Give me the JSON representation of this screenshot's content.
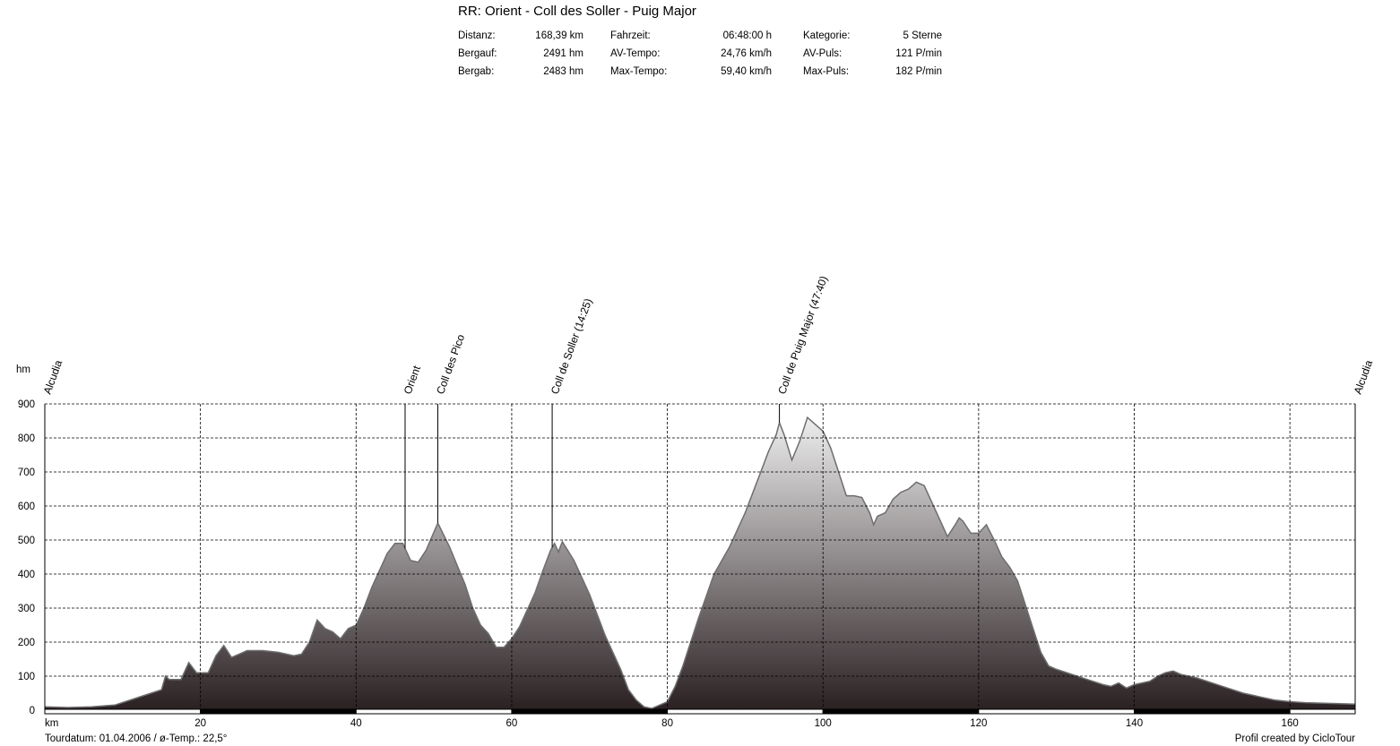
{
  "title": "RR: Orient - Coll des Soller - Puig Major",
  "stats": [
    [
      {
        "label": "Distanz:",
        "value": "168,39 km"
      },
      {
        "label": "Fahrzeit:",
        "value": "06:48:00 h"
      },
      {
        "label": "Kategorie:",
        "value": "5 Sterne"
      }
    ],
    [
      {
        "label": "Bergauf:",
        "value": "2491 hm"
      },
      {
        "label": "AV-Tempo:",
        "value": "24,76 km/h"
      },
      {
        "label": "AV-Puls:",
        "value": "121 P/min"
      }
    ],
    [
      {
        "label": "Bergab:",
        "value": "2483 hm"
      },
      {
        "label": "Max-Tempo:",
        "value": "59,40 km/h"
      },
      {
        "label": "Max-Puls:",
        "value": "182 P/min"
      }
    ]
  ],
  "footer": {
    "left": "Tourdatum: 01.04.2006  /  ø-Temp.: 22,5°",
    "right": "Profil created by CicloTour"
  },
  "chart_data": {
    "type": "area",
    "xlabel": "km",
    "ylabel": "hm",
    "xlim": [
      0,
      168.39
    ],
    "ylim": [
      0,
      900
    ],
    "x_ticks": [
      20,
      40,
      60,
      80,
      100,
      120,
      140,
      160
    ],
    "y_ticks": [
      0,
      100,
      200,
      300,
      400,
      500,
      600,
      700,
      800,
      900
    ],
    "grid": true,
    "series": [
      {
        "values": [
          [
            0,
            10
          ],
          [
            3,
            8
          ],
          [
            6,
            10
          ],
          [
            9,
            15
          ],
          [
            11,
            30
          ],
          [
            13,
            45
          ],
          [
            15,
            60
          ],
          [
            15.5,
            100
          ],
          [
            16,
            90
          ],
          [
            17.5,
            90
          ],
          [
            18.5,
            140
          ],
          [
            19.5,
            110
          ],
          [
            21,
            110
          ],
          [
            22,
            160
          ],
          [
            23,
            190
          ],
          [
            24,
            155
          ],
          [
            25,
            165
          ],
          [
            26,
            175
          ],
          [
            28,
            175
          ],
          [
            30,
            170
          ],
          [
            32,
            160
          ],
          [
            33,
            165
          ],
          [
            34,
            200
          ],
          [
            35,
            265
          ],
          [
            36,
            240
          ],
          [
            37,
            230
          ],
          [
            38,
            210
          ],
          [
            39,
            240
          ],
          [
            40,
            250
          ],
          [
            41,
            300
          ],
          [
            42,
            360
          ],
          [
            43,
            410
          ],
          [
            44,
            460
          ],
          [
            45,
            490
          ],
          [
            46,
            490
          ],
          [
            46.3,
            475
          ],
          [
            47,
            440
          ],
          [
            48,
            435
          ],
          [
            49,
            470
          ],
          [
            50.5,
            550
          ],
          [
            52,
            480
          ],
          [
            54,
            370
          ],
          [
            55,
            300
          ],
          [
            56,
            250
          ],
          [
            57,
            225
          ],
          [
            58,
            185
          ],
          [
            59,
            185
          ],
          [
            60,
            210
          ],
          [
            61,
            245
          ],
          [
            62,
            295
          ],
          [
            63,
            345
          ],
          [
            64,
            410
          ],
          [
            65,
            470
          ],
          [
            65.5,
            490
          ],
          [
            66,
            465
          ],
          [
            66.5,
            495
          ],
          [
            68,
            440
          ],
          [
            70,
            340
          ],
          [
            72,
            220
          ],
          [
            74,
            120
          ],
          [
            75,
            60
          ],
          [
            76,
            30
          ],
          [
            77,
            10
          ],
          [
            78,
            5
          ],
          [
            79,
            15
          ],
          [
            80,
            25
          ],
          [
            81,
            70
          ],
          [
            82,
            130
          ],
          [
            83,
            200
          ],
          [
            84,
            270
          ],
          [
            85,
            335
          ],
          [
            86,
            400
          ],
          [
            87,
            440
          ],
          [
            88,
            480
          ],
          [
            89,
            530
          ],
          [
            90,
            580
          ],
          [
            91,
            640
          ],
          [
            92,
            700
          ],
          [
            93,
            760
          ],
          [
            94,
            810
          ],
          [
            94.4,
            845
          ],
          [
            95,
            810
          ],
          [
            96,
            735
          ],
          [
            97,
            790
          ],
          [
            98,
            860
          ],
          [
            99,
            840
          ],
          [
            100,
            820
          ],
          [
            101,
            770
          ],
          [
            102,
            700
          ],
          [
            103,
            630
          ],
          [
            104,
            630
          ],
          [
            105,
            625
          ],
          [
            106,
            580
          ],
          [
            106.5,
            545
          ],
          [
            107,
            570
          ],
          [
            108,
            580
          ],
          [
            109,
            620
          ],
          [
            110,
            640
          ],
          [
            111,
            650
          ],
          [
            112,
            670
          ],
          [
            113,
            660
          ],
          [
            114,
            610
          ],
          [
            115,
            560
          ],
          [
            116,
            510
          ],
          [
            117,
            545
          ],
          [
            117.5,
            565
          ],
          [
            118,
            555
          ],
          [
            119,
            520
          ],
          [
            120,
            520
          ],
          [
            121,
            545
          ],
          [
            122,
            500
          ],
          [
            123,
            450
          ],
          [
            124,
            420
          ],
          [
            125,
            380
          ],
          [
            126,
            310
          ],
          [
            127,
            240
          ],
          [
            128,
            170
          ],
          [
            129,
            130
          ],
          [
            130,
            120
          ],
          [
            132,
            105
          ],
          [
            134,
            90
          ],
          [
            136,
            75
          ],
          [
            137,
            70
          ],
          [
            138,
            80
          ],
          [
            139,
            65
          ],
          [
            140,
            75
          ],
          [
            141,
            80
          ],
          [
            142,
            85
          ],
          [
            143,
            100
          ],
          [
            144,
            110
          ],
          [
            145,
            115
          ],
          [
            146,
            105
          ],
          [
            148,
            95
          ],
          [
            150,
            80
          ],
          [
            152,
            65
          ],
          [
            154,
            50
          ],
          [
            156,
            40
          ],
          [
            158,
            30
          ],
          [
            160,
            25
          ],
          [
            162,
            22
          ],
          [
            165,
            20
          ],
          [
            168.39,
            18
          ]
        ]
      }
    ],
    "waypoints": [
      {
        "label": "Alcudia",
        "km": 0,
        "marker": false
      },
      {
        "label": "Orient",
        "km": 46.3,
        "marker": true
      },
      {
        "label": "Coll des Pico",
        "km": 50.5,
        "marker": true
      },
      {
        "label": "Coll de Soller (14:25)",
        "km": 65.2,
        "marker": true
      },
      {
        "label": "Coll de Puig Major (47:40)",
        "km": 94.4,
        "marker": true
      },
      {
        "label": "Alcudia",
        "km": 168.39,
        "marker": false
      }
    ],
    "colors": {
      "fill_top": "#f0f0f0",
      "fill_bottom": "#2a2022",
      "outline": "#6e6e6e"
    }
  }
}
